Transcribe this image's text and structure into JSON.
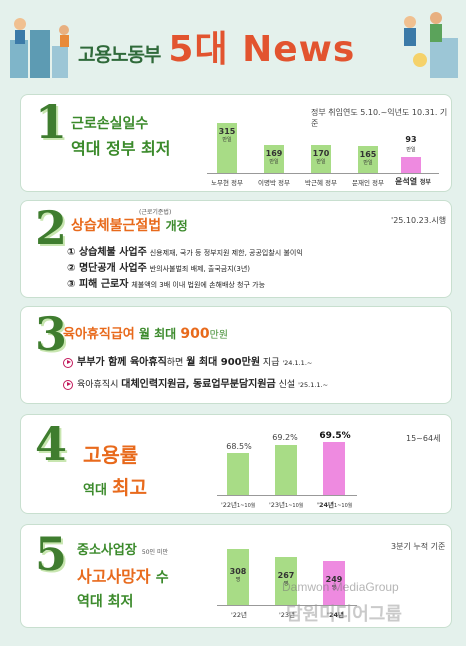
{
  "header": {
    "title_ko": "고용노동부",
    "title_en": "5대 News"
  },
  "sections": [
    {
      "number": "1",
      "line1": "근로손실일수",
      "line2": "역대 정부 최저",
      "note": "정부 취임연도 5.10.~익년도 10.31. 기준",
      "bars": [
        {
          "value": "315",
          "unit": "만일",
          "label": "노무현",
          "suffix": "정부"
        },
        {
          "value": "169",
          "unit": "만일",
          "label": "이명박",
          "suffix": "정부"
        },
        {
          "value": "170",
          "unit": "만일",
          "label": "박근혜",
          "suffix": "정부"
        },
        {
          "value": "165",
          "unit": "만일",
          "label": "문재인",
          "suffix": "정부"
        },
        {
          "value": "93",
          "unit": "만일",
          "label": "윤석열",
          "suffix": "정부"
        }
      ]
    },
    {
      "number": "2",
      "title_orange": "상습체불근절법",
      "title_small": "(근로기준법)",
      "title_rest": "개정",
      "note": "'25.10.23.시행",
      "items": [
        {
          "bold": "① 상습체불 사업주",
          "text": "신용제재, 국가 등 정부지원 제한, 공공입찰시 불이익"
        },
        {
          "bold": "② 명단공개 사업주",
          "text": "반의사불벌죄 배제, 출국금지(3년)"
        },
        {
          "bold": "③ 피해 근로자",
          "text": "체불액의 3배 이내 법원에 손해배상 청구 가능"
        }
      ]
    },
    {
      "number": "3",
      "title_orange": "육아휴직급여",
      "title_mid": "월 최대",
      "title_num": "900",
      "title_unit": "만원",
      "items": [
        {
          "pre": "",
          "bold": "부부가 함께 육아휴직",
          "mid": "하면",
          "bold2": "월 최대 900만원",
          "post": "지급",
          "date": "'24.1.1.~"
        },
        {
          "pre": "육아휴직시",
          "bold": "대체인력지원금, 동료업무분담지원금",
          "mid": "",
          "bold2": "",
          "post": "신설",
          "date": "'25.1.1.~"
        }
      ]
    },
    {
      "number": "4",
      "line1": "고용률",
      "line2a": "역대",
      "line2b": "최고",
      "note": "15~64세",
      "bars": [
        {
          "value": "68.5%",
          "year": "'22년",
          "sub": "1~10월"
        },
        {
          "value": "69.2%",
          "year": "'23년",
          "sub": "1~10월"
        },
        {
          "value": "69.5%",
          "year": "'24년",
          "sub": "1~10월"
        }
      ]
    },
    {
      "number": "5",
      "line1": "중소사업장",
      "line1_small": "50인 미만",
      "line2a": "사고사망자",
      "line2b": "수",
      "line3": "역대 최저",
      "note": "3분기 누적 기준",
      "bars": [
        {
          "value": "308",
          "unit": "명",
          "year": "'22년"
        },
        {
          "value": "267",
          "unit": "명",
          "year": "'23년"
        },
        {
          "value": "249",
          "unit": "명",
          "year": "'24년"
        }
      ]
    }
  ],
  "watermark": {
    "en": "Damwon MediaGroup",
    "ko": "담원미디어그룹"
  },
  "colors": {
    "green": "#a8dc86",
    "pink": "#ee8ae0",
    "orange": "#e86a1c",
    "dark_green": "#3b8a2b",
    "title_red": "#e2542f"
  }
}
